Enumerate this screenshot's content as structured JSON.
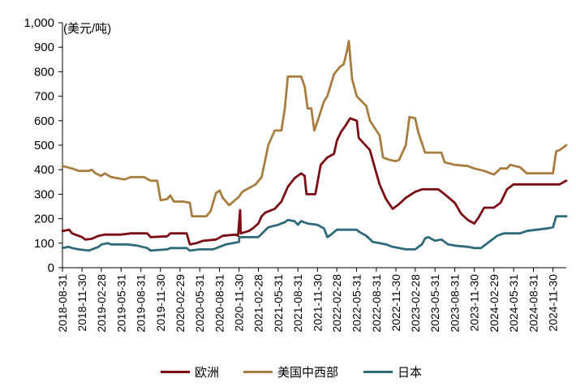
{
  "chart_data": {
    "type": "line",
    "unit_label": "(美元/吨)",
    "ylim": [
      0,
      1000
    ],
    "y_ticks": [
      "0",
      "100",
      "200",
      "300",
      "400",
      "500",
      "600",
      "700",
      "800",
      "900",
      "1,000"
    ],
    "x_range": [
      "2018-08-31",
      "2025-01-31"
    ],
    "x_ticks": [
      "2018-08-31",
      "2018-11-30",
      "2019-02-28",
      "2019-05-31",
      "2019-08-31",
      "2019-11-30",
      "2020-02-29",
      "2020-05-31",
      "2020-08-31",
      "2020-11-30",
      "2021-02-28",
      "2021-05-31",
      "2021-08-31",
      "2021-11-30",
      "2022-02-28",
      "2022-05-31",
      "2022-08-31",
      "2022-11-30",
      "2023-02-28",
      "2023-05-31",
      "2023-08-31",
      "2023-11-30",
      "2024-02-29",
      "2024-05-31",
      "2024-08-31",
      "2024-11-30"
    ],
    "series": [
      {
        "name": "欧洲",
        "color": "#7b0c14",
        "points": [
          [
            "2018-08-31",
            150
          ],
          [
            "2018-10-01",
            155
          ],
          [
            "2018-10-15",
            140
          ],
          [
            "2018-11-30",
            125
          ],
          [
            "2018-12-15",
            115
          ],
          [
            "2019-01-15",
            118
          ],
          [
            "2019-02-15",
            130
          ],
          [
            "2019-03-15",
            135
          ],
          [
            "2019-05-31",
            135
          ],
          [
            "2019-07-15",
            140
          ],
          [
            "2019-09-30",
            140
          ],
          [
            "2019-10-15",
            125
          ],
          [
            "2019-12-31",
            128
          ],
          [
            "2020-01-15",
            140
          ],
          [
            "2020-03-31",
            140
          ],
          [
            "2020-04-15",
            95
          ],
          [
            "2020-05-15",
            100
          ],
          [
            "2020-06-15",
            110
          ],
          [
            "2020-08-15",
            115
          ],
          [
            "2020-09-15",
            130
          ],
          [
            "2020-11-15",
            135
          ],
          [
            "2020-11-25",
            130
          ],
          [
            "2020-12-05",
            235
          ],
          [
            "2020-12-08",
            140
          ],
          [
            "2021-01-15",
            150
          ],
          [
            "2021-02-01",
            160
          ],
          [
            "2021-02-28",
            180
          ],
          [
            "2021-03-15",
            210
          ],
          [
            "2021-04-01",
            225
          ],
          [
            "2021-05-15",
            240
          ],
          [
            "2021-06-15",
            270
          ],
          [
            "2021-07-15",
            330
          ],
          [
            "2021-08-15",
            365
          ],
          [
            "2021-09-15",
            385
          ],
          [
            "2021-10-01",
            375
          ],
          [
            "2021-10-10",
            300
          ],
          [
            "2021-11-20",
            300
          ],
          [
            "2021-12-15",
            420
          ],
          [
            "2022-01-15",
            450
          ],
          [
            "2022-02-15",
            465
          ],
          [
            "2022-03-01",
            520
          ],
          [
            "2022-03-20",
            555
          ],
          [
            "2022-04-10",
            580
          ],
          [
            "2022-05-01",
            610
          ],
          [
            "2022-06-01",
            600
          ],
          [
            "2022-06-10",
            530
          ],
          [
            "2022-07-01",
            510
          ],
          [
            "2022-08-01",
            480
          ],
          [
            "2022-08-20",
            420
          ],
          [
            "2022-09-15",
            340
          ],
          [
            "2022-10-15",
            280
          ],
          [
            "2022-11-15",
            240
          ],
          [
            "2022-12-15",
            260
          ],
          [
            "2023-01-15",
            285
          ],
          [
            "2023-02-28",
            310
          ],
          [
            "2023-04-01",
            320
          ],
          [
            "2023-06-15",
            320
          ],
          [
            "2023-07-15",
            300
          ],
          [
            "2023-08-31",
            265
          ],
          [
            "2023-09-30",
            220
          ],
          [
            "2023-10-31",
            195
          ],
          [
            "2023-11-30",
            180
          ],
          [
            "2023-12-20",
            205
          ],
          [
            "2024-01-15",
            245
          ],
          [
            "2024-02-29",
            245
          ],
          [
            "2024-03-31",
            265
          ],
          [
            "2024-04-30",
            320
          ],
          [
            "2024-05-31",
            340
          ],
          [
            "2024-12-31",
            340
          ],
          [
            "2025-01-20",
            350
          ],
          [
            "2025-01-31",
            355
          ]
        ]
      },
      {
        "name": "美国中西部",
        "color": "#a97c3f",
        "points": [
          [
            "2018-08-31",
            415
          ],
          [
            "2018-10-15",
            405
          ],
          [
            "2018-11-15",
            395
          ],
          [
            "2018-12-31",
            395
          ],
          [
            "2019-01-15",
            400
          ],
          [
            "2019-02-01",
            385
          ],
          [
            "2019-02-28",
            375
          ],
          [
            "2019-03-15",
            385
          ],
          [
            "2019-04-15",
            370
          ],
          [
            "2019-05-15",
            365
          ],
          [
            "2019-06-15",
            360
          ],
          [
            "2019-07-15",
            370
          ],
          [
            "2019-09-15",
            370
          ],
          [
            "2019-10-15",
            355
          ],
          [
            "2019-11-15",
            355
          ],
          [
            "2019-12-01",
            275
          ],
          [
            "2019-12-31",
            280
          ],
          [
            "2020-01-15",
            295
          ],
          [
            "2020-02-01",
            270
          ],
          [
            "2020-03-15",
            270
          ],
          [
            "2020-04-15",
            265
          ],
          [
            "2020-04-25",
            210
          ],
          [
            "2020-06-30",
            210
          ],
          [
            "2020-07-20",
            230
          ],
          [
            "2020-08-15",
            305
          ],
          [
            "2020-09-01",
            315
          ],
          [
            "2020-09-15",
            285
          ],
          [
            "2020-10-15",
            255
          ],
          [
            "2020-11-30",
            290
          ],
          [
            "2020-12-15",
            310
          ],
          [
            "2021-01-15",
            325
          ],
          [
            "2021-02-15",
            340
          ],
          [
            "2021-03-15",
            370
          ],
          [
            "2021-04-15",
            500
          ],
          [
            "2021-05-15",
            560
          ],
          [
            "2021-06-15",
            560
          ],
          [
            "2021-07-01",
            650
          ],
          [
            "2021-07-15",
            780
          ],
          [
            "2021-09-15",
            780
          ],
          [
            "2021-10-01",
            740
          ],
          [
            "2021-10-15",
            650
          ],
          [
            "2021-11-01",
            650
          ],
          [
            "2021-11-15",
            560
          ],
          [
            "2021-12-01",
            600
          ],
          [
            "2021-12-31",
            680
          ],
          [
            "2022-01-15",
            700
          ],
          [
            "2022-02-15",
            790
          ],
          [
            "2022-03-15",
            820
          ],
          [
            "2022-04-01",
            830
          ],
          [
            "2022-04-15",
            880
          ],
          [
            "2022-04-25",
            925
          ],
          [
            "2022-05-10",
            770
          ],
          [
            "2022-06-01",
            700
          ],
          [
            "2022-07-15",
            660
          ],
          [
            "2022-08-01",
            600
          ],
          [
            "2022-08-31",
            560
          ],
          [
            "2022-09-15",
            540
          ],
          [
            "2022-10-01",
            450
          ],
          [
            "2022-10-31",
            440
          ],
          [
            "2022-11-30",
            435
          ],
          [
            "2022-12-15",
            440
          ],
          [
            "2023-01-15",
            500
          ],
          [
            "2023-02-01",
            615
          ],
          [
            "2023-02-28",
            610
          ],
          [
            "2023-03-15",
            550
          ],
          [
            "2023-04-15",
            470
          ],
          [
            "2023-06-30",
            470
          ],
          [
            "2023-07-15",
            430
          ],
          [
            "2023-08-31",
            420
          ],
          [
            "2023-10-31",
            415
          ],
          [
            "2023-11-30",
            405
          ],
          [
            "2024-01-15",
            395
          ],
          [
            "2024-02-29",
            380
          ],
          [
            "2024-03-31",
            405
          ],
          [
            "2024-04-30",
            405
          ],
          [
            "2024-05-15",
            420
          ],
          [
            "2024-06-30",
            410
          ],
          [
            "2024-07-31",
            385
          ],
          [
            "2024-11-30",
            385
          ],
          [
            "2024-12-15",
            475
          ],
          [
            "2024-12-31",
            480
          ],
          [
            "2025-01-31",
            500
          ]
        ]
      },
      {
        "name": "日本",
        "color": "#2f6a7a",
        "points": [
          [
            "2018-08-31",
            80
          ],
          [
            "2018-09-30",
            85
          ],
          [
            "2018-10-15",
            80
          ],
          [
            "2018-11-15",
            75
          ],
          [
            "2018-12-31",
            70
          ],
          [
            "2019-02-15",
            85
          ],
          [
            "2019-03-01",
            95
          ],
          [
            "2019-03-31",
            100
          ],
          [
            "2019-04-15",
            95
          ],
          [
            "2019-06-30",
            95
          ],
          [
            "2019-08-15",
            90
          ],
          [
            "2019-09-30",
            80
          ],
          [
            "2019-10-15",
            70
          ],
          [
            "2019-12-31",
            75
          ],
          [
            "2020-01-15",
            80
          ],
          [
            "2020-03-31",
            80
          ],
          [
            "2020-04-15",
            70
          ],
          [
            "2020-05-31",
            75
          ],
          [
            "2020-07-31",
            75
          ],
          [
            "2020-08-31",
            85
          ],
          [
            "2020-09-30",
            95
          ],
          [
            "2020-11-30",
            105
          ],
          [
            "2020-12-01",
            125
          ],
          [
            "2021-02-28",
            125
          ],
          [
            "2021-04-15",
            165
          ],
          [
            "2021-05-31",
            175
          ],
          [
            "2021-06-30",
            185
          ],
          [
            "2021-07-15",
            195
          ],
          [
            "2021-08-15",
            190
          ],
          [
            "2021-08-31",
            175
          ],
          [
            "2021-09-15",
            190
          ],
          [
            "2021-10-15",
            180
          ],
          [
            "2021-11-30",
            175
          ],
          [
            "2021-12-31",
            160
          ],
          [
            "2022-01-15",
            125
          ],
          [
            "2022-02-01",
            135
          ],
          [
            "2022-02-28",
            155
          ],
          [
            "2022-05-31",
            155
          ],
          [
            "2022-06-15",
            145
          ],
          [
            "2022-07-15",
            130
          ],
          [
            "2022-08-15",
            105
          ],
          [
            "2022-09-15",
            100
          ],
          [
            "2022-10-15",
            95
          ],
          [
            "2022-11-15",
            85
          ],
          [
            "2022-12-15",
            80
          ],
          [
            "2023-01-15",
            75
          ],
          [
            "2023-02-28",
            75
          ],
          [
            "2023-03-31",
            95
          ],
          [
            "2023-04-15",
            120
          ],
          [
            "2023-04-30",
            125
          ],
          [
            "2023-05-31",
            110
          ],
          [
            "2023-06-30",
            115
          ],
          [
            "2023-07-31",
            95
          ],
          [
            "2023-08-31",
            90
          ],
          [
            "2023-10-31",
            85
          ],
          [
            "2023-11-30",
            80
          ],
          [
            "2023-12-31",
            80
          ],
          [
            "2024-01-15",
            90
          ],
          [
            "2024-02-29",
            120
          ],
          [
            "2024-03-15",
            130
          ],
          [
            "2024-04-15",
            140
          ],
          [
            "2024-06-30",
            140
          ],
          [
            "2024-07-31",
            150
          ],
          [
            "2024-10-31",
            160
          ],
          [
            "2024-11-30",
            165
          ],
          [
            "2024-12-15",
            210
          ],
          [
            "2025-01-31",
            210
          ]
        ]
      }
    ]
  }
}
